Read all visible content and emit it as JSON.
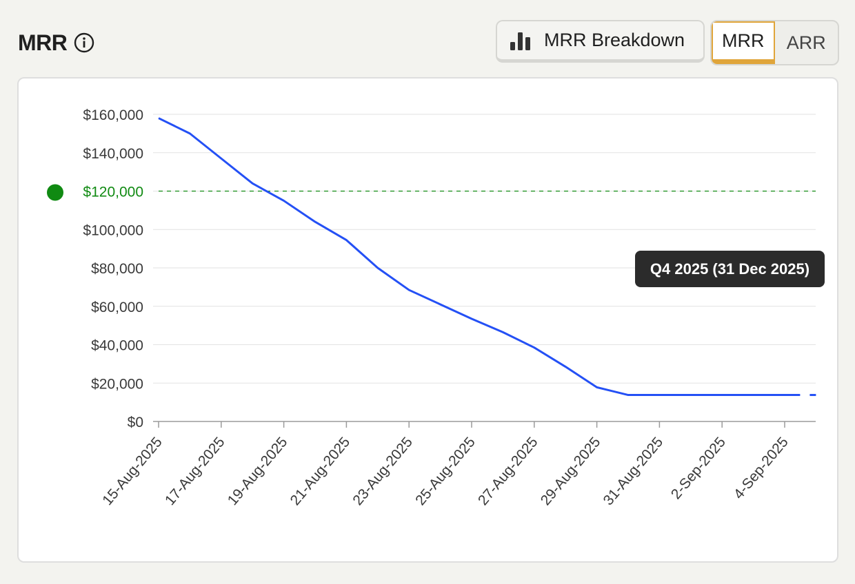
{
  "header": {
    "title": "MRR"
  },
  "toolbar": {
    "breakdown_label": "MRR Breakdown",
    "toggle": {
      "options": [
        "MRR",
        "ARR"
      ],
      "selected": "MRR"
    }
  },
  "colors": {
    "line": "#2450f5",
    "target": "#108a12",
    "toggle_accent": "#e0a53a"
  },
  "chart_data": {
    "type": "line",
    "xlabel": "",
    "ylabel": "",
    "ylim": [
      0,
      160000
    ],
    "y_ticks": [
      "$0",
      "$20,000",
      "$40,000",
      "$60,000",
      "$80,000",
      "$100,000",
      "$120,000",
      "$140,000",
      "$160,000"
    ],
    "x_ticks": [
      "15-Aug-2025",
      "17-Aug-2025",
      "19-Aug-2025",
      "21-Aug-2025",
      "23-Aug-2025",
      "25-Aug-2025",
      "27-Aug-2025",
      "29-Aug-2025",
      "31-Aug-2025",
      "2-Sep-2025",
      "4-Sep-2025"
    ],
    "grid": true,
    "series": [
      {
        "x": [
          "2025-08-15",
          "2025-08-16",
          "2025-08-17",
          "2025-08-18",
          "2025-08-19",
          "2025-08-20",
          "2025-08-21",
          "2025-08-22",
          "2025-08-23",
          "2025-08-24",
          "2025-08-25",
          "2025-08-26",
          "2025-08-27",
          "2025-08-28",
          "2025-08-29",
          "2025-08-30",
          "2025-08-31",
          "2025-09-01",
          "2025-09-02",
          "2025-09-03",
          "2025-09-04",
          "2025-09-05"
        ],
        "values": [
          158000,
          150000,
          137000,
          124000,
          115000,
          104000,
          94500,
          80000,
          68500,
          61000,
          53500,
          46500,
          38500,
          28500,
          17800,
          13800,
          13800,
          13800,
          13800,
          13800,
          13800,
          13800
        ]
      }
    ],
    "target": {
      "value": 120000,
      "label": "$120,000",
      "tooltip": "Q4 2025 (31 Dec 2025)"
    }
  }
}
